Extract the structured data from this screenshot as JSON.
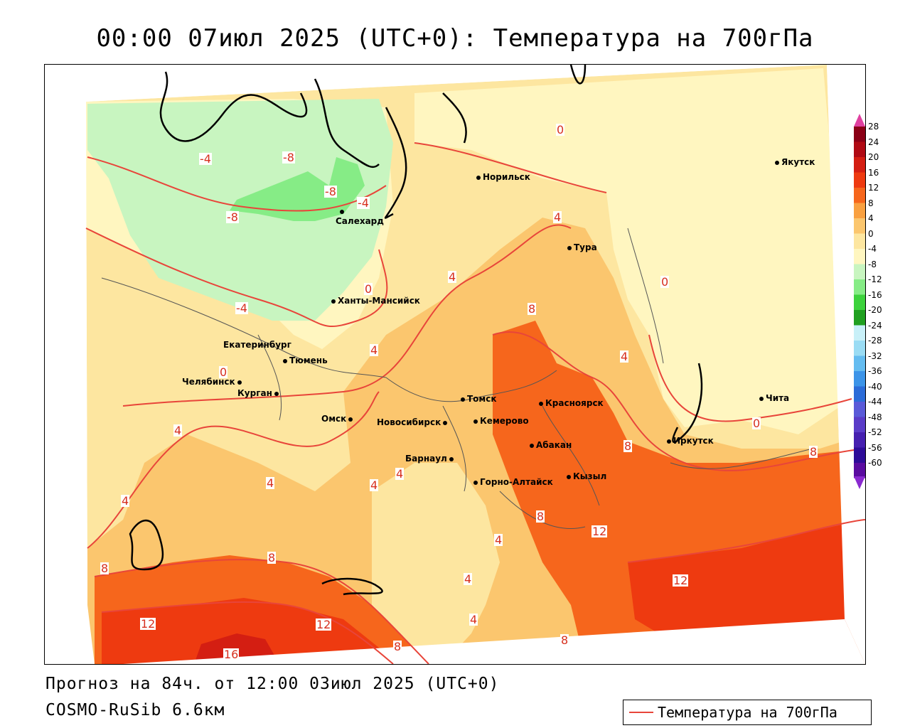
{
  "title": "00:00 07июл 2025 (UTC+0): Температура на 700гПа",
  "footer": {
    "forecast": "Прогноз на 84ч. от 12:00 03июл 2025 (UTC+0)",
    "model": "COSMO-RuSib 6.6км"
  },
  "legend": {
    "label": "Температура на 700гПа",
    "line_color": "#e8453a"
  },
  "colorbar": {
    "levels": [
      "28",
      "24",
      "20",
      "16",
      "12",
      "8",
      "4",
      "0",
      "-4",
      "-8",
      "-12",
      "-16",
      "-20",
      "-24",
      "-28",
      "-32",
      "-36",
      "-40",
      "-44",
      "-48",
      "-52",
      "-56",
      "-60"
    ],
    "colors": [
      "#8b0016",
      "#b00a14",
      "#d41e12",
      "#ee3a10",
      "#f6661c",
      "#f9a040",
      "#fbc66e",
      "#fde6a0",
      "#fff6c0",
      "#c8f5c0",
      "#86ec86",
      "#3cd23c",
      "#20a020",
      "#c8f0f8",
      "#9adcf4",
      "#64bcf0",
      "#3c94e8",
      "#2c6cd8",
      "#5a5ad8",
      "#5a3cc8",
      "#4620b0",
      "#2e0c98",
      "#5a0ca0"
    ],
    "top_arrow_color": "#e040a0",
    "bottom_arrow_color": "#8a2ad0"
  },
  "cities": [
    {
      "name": "Норильск"
    },
    {
      "name": "Якутск"
    },
    {
      "name": "Салехард"
    },
    {
      "name": "Тура"
    },
    {
      "name": "Ханты-Мансийск"
    },
    {
      "name": "Екатеринбург"
    },
    {
      "name": "Тюмень"
    },
    {
      "name": "Челябинск"
    },
    {
      "name": "Курган"
    },
    {
      "name": "Омск"
    },
    {
      "name": "Томск"
    },
    {
      "name": "Красноярск"
    },
    {
      "name": "Новосибирск"
    },
    {
      "name": "Кемерово"
    },
    {
      "name": "Абакан"
    },
    {
      "name": "Барнаул"
    },
    {
      "name": "Горно-Алтайск"
    },
    {
      "name": "Кызыл"
    },
    {
      "name": "Иркутск"
    },
    {
      "name": "Чита"
    }
  ],
  "isoline_labels": [
    "-4",
    "-8",
    "-8",
    "-4",
    "-8",
    "-4",
    "0",
    "4",
    "0",
    "4",
    "8",
    "4",
    "0",
    "4",
    "0",
    "4",
    "4",
    "4",
    "4",
    "8",
    "8",
    "4",
    "8",
    "4",
    "8",
    "8",
    "12",
    "12",
    "12",
    "4",
    "16",
    "12",
    "8",
    "8",
    "4",
    "0"
  ]
}
